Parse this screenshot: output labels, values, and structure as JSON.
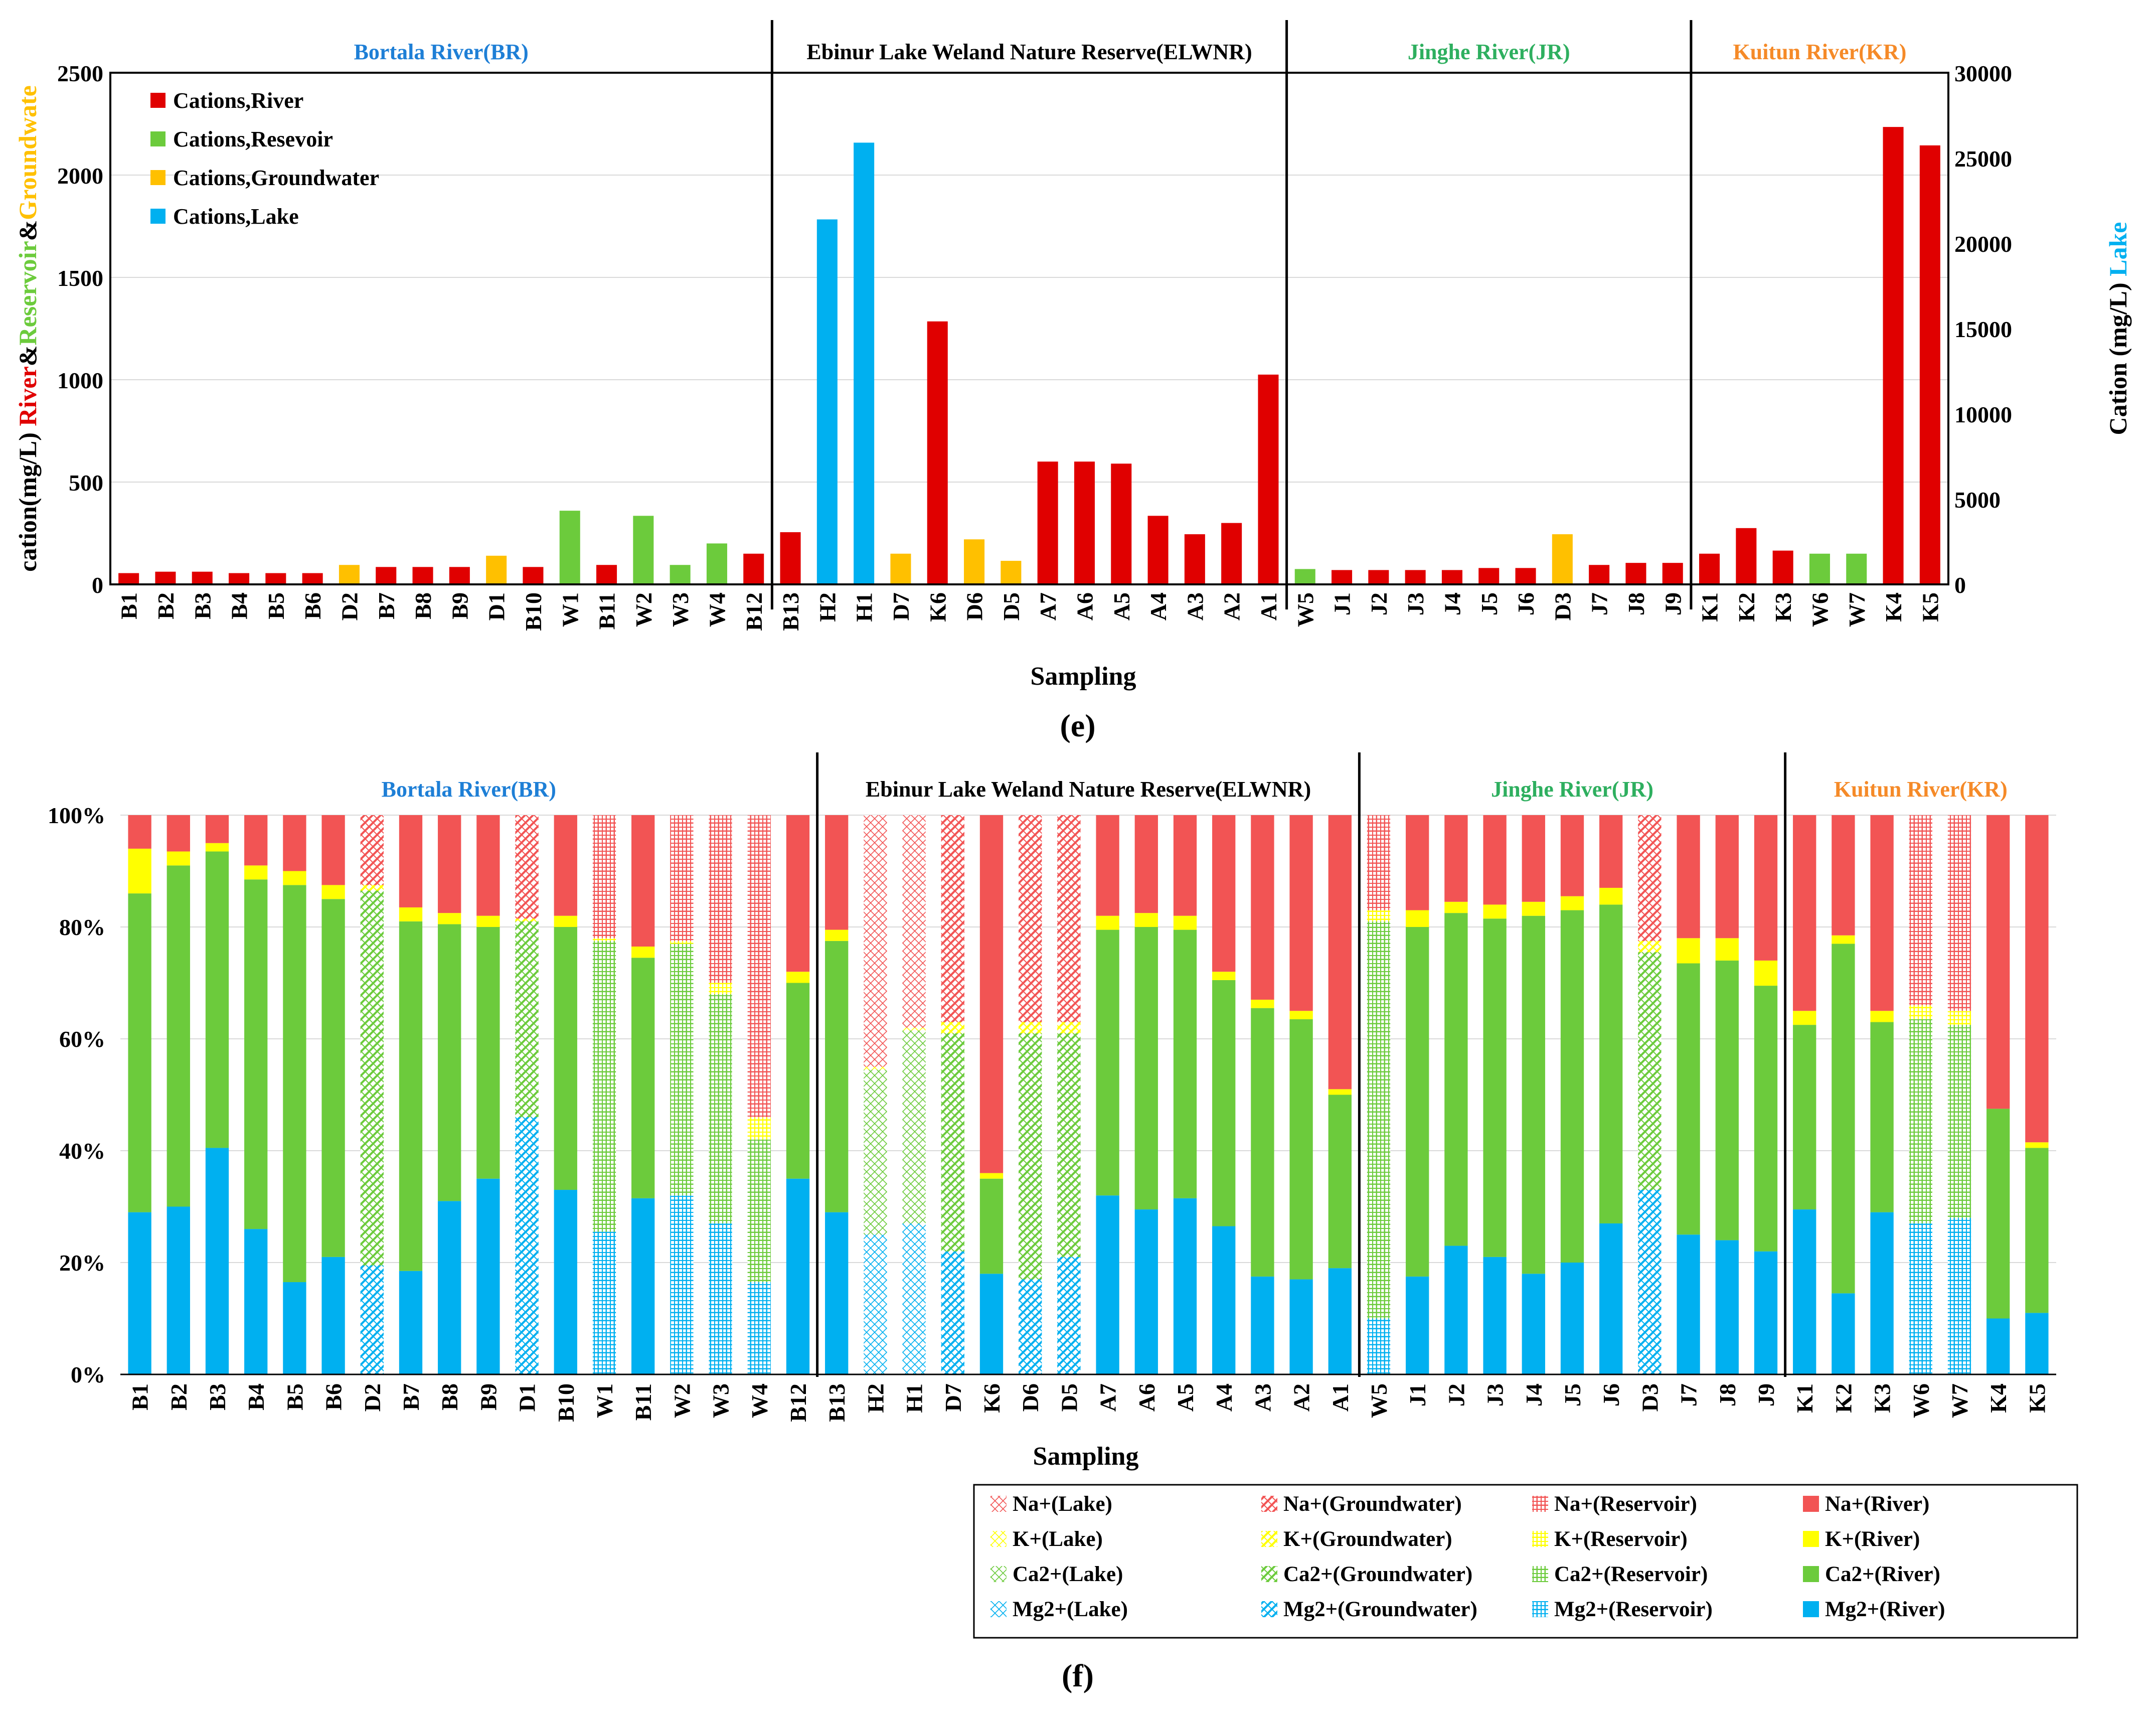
{
  "colors": {
    "river": "#E00000",
    "reservoir": "#6CCB3C",
    "groundwater": "#FFC000",
    "lake": "#00B0F0",
    "na": "#F25454",
    "k": "#FFFF00",
    "ca": "#6CCB3C",
    "mg": "#00B0F0",
    "br_title": "#1E7FD6",
    "jr_title": "#2EAF5F",
    "kr_title": "#F58A28",
    "grid": "#D9D9D9"
  },
  "chart_data": [
    {
      "id": "e",
      "type": "bar",
      "panel_label": "(e)",
      "xlabel": "Sampling",
      "ylabel_left": {
        "parts": [
          {
            "text": "cation(mg/L) ",
            "color": "#000000"
          },
          {
            "text": "River",
            "color": "#E00000"
          },
          {
            "text": "&",
            "color": "#000000"
          },
          {
            "text": "Reservoir",
            "color": "#6CCB3C"
          },
          {
            "text": "&",
            "color": "#000000"
          },
          {
            "text": "Groundwate",
            "color": "#FFC000"
          }
        ]
      },
      "ylabel_right": {
        "parts": [
          {
            "text": "Cation (mg/L) ",
            "color": "#000000"
          },
          {
            "text": "Lake",
            "color": "#00B0F0"
          }
        ]
      },
      "ylim_left": [
        0,
        2500
      ],
      "yticks_left": [
        0,
        500,
        1000,
        1500,
        2000,
        2500
      ],
      "ylim_right": [
        0,
        30000
      ],
      "yticks_right": [
        0,
        5000,
        10000,
        15000,
        20000,
        25000,
        30000
      ],
      "grid": true,
      "legend_position": "top-left",
      "legend": [
        {
          "label": "Cations,River",
          "type": "River"
        },
        {
          "label": "Cations,Resevoir",
          "type": "Reservoir"
        },
        {
          "label": "Cations,Groundwater",
          "type": "Groundwater"
        },
        {
          "label": "Cations,Lake",
          "type": "Lake"
        }
      ],
      "regions": [
        {
          "label": "Bortala River(BR)",
          "color": "#1E7FD6",
          "start": 0,
          "end": 18
        },
        {
          "label": "Ebinur Lake Weland Nature Reserve(ELWNR)",
          "color": "#000000",
          "start": 18,
          "end": 32
        },
        {
          "label": "Jinghe River(JR)",
          "color": "#2EAF5F",
          "start": 32,
          "end": 43
        },
        {
          "label": "Kuitun River(KR)",
          "color": "#F58A28",
          "start": 43,
          "end": 50
        }
      ],
      "samples": [
        {
          "name": "B1",
          "type": "River",
          "value": 55
        },
        {
          "name": "B2",
          "type": "River",
          "value": 62
        },
        {
          "name": "B3",
          "type": "River",
          "value": 62
        },
        {
          "name": "B4",
          "type": "River",
          "value": 55
        },
        {
          "name": "B5",
          "type": "River",
          "value": 55
        },
        {
          "name": "B6",
          "type": "River",
          "value": 55
        },
        {
          "name": "D2",
          "type": "Groundwater",
          "value": 95
        },
        {
          "name": "B7",
          "type": "River",
          "value": 85
        },
        {
          "name": "B8",
          "type": "River",
          "value": 85
        },
        {
          "name": "B9",
          "type": "River",
          "value": 85
        },
        {
          "name": "D1",
          "type": "Groundwater",
          "value": 140
        },
        {
          "name": "B10",
          "type": "River",
          "value": 85
        },
        {
          "name": "W1",
          "type": "Reservoir",
          "value": 360
        },
        {
          "name": "B11",
          "type": "River",
          "value": 95
        },
        {
          "name": "W2",
          "type": "Reservoir",
          "value": 335
        },
        {
          "name": "W3",
          "type": "Reservoir",
          "value": 95
        },
        {
          "name": "W4",
          "type": "Reservoir",
          "value": 200
        },
        {
          "name": "B12",
          "type": "River",
          "value": 150
        },
        {
          "name": "B13",
          "type": "River",
          "value": 255
        },
        {
          "name": "H2",
          "type": "Lake",
          "value": 21400
        },
        {
          "name": "H1",
          "type": "Lake",
          "value": 25900
        },
        {
          "name": "D7",
          "type": "Groundwater",
          "value": 150
        },
        {
          "name": "K6",
          "type": "River",
          "value": 1285
        },
        {
          "name": "D6",
          "type": "Groundwater",
          "value": 220
        },
        {
          "name": "D5",
          "type": "Groundwater",
          "value": 115
        },
        {
          "name": "A7",
          "type": "River",
          "value": 600
        },
        {
          "name": "A6",
          "type": "River",
          "value": 600
        },
        {
          "name": "A5",
          "type": "River",
          "value": 590
        },
        {
          "name": "A4",
          "type": "River",
          "value": 335
        },
        {
          "name": "A3",
          "type": "River",
          "value": 245
        },
        {
          "name": "A2",
          "type": "River",
          "value": 300
        },
        {
          "name": "A1",
          "type": "River",
          "value": 1025
        },
        {
          "name": "W5",
          "type": "Reservoir",
          "value": 75
        },
        {
          "name": "J1",
          "type": "River",
          "value": 70
        },
        {
          "name": "J2",
          "type": "River",
          "value": 70
        },
        {
          "name": "J3",
          "type": "River",
          "value": 70
        },
        {
          "name": "J4",
          "type": "River",
          "value": 70
        },
        {
          "name": "J5",
          "type": "River",
          "value": 80
        },
        {
          "name": "J6",
          "type": "River",
          "value": 80
        },
        {
          "name": "D3",
          "type": "Groundwater",
          "value": 245
        },
        {
          "name": "J7",
          "type": "River",
          "value": 95
        },
        {
          "name": "J8",
          "type": "River",
          "value": 105
        },
        {
          "name": "J9",
          "type": "River",
          "value": 105
        },
        {
          "name": "K1",
          "type": "River",
          "value": 150
        },
        {
          "name": "K2",
          "type": "River",
          "value": 275
        },
        {
          "name": "K3",
          "type": "River",
          "value": 165
        },
        {
          "name": "W6",
          "type": "Reservoir",
          "value": 150
        },
        {
          "name": "W7",
          "type": "Reservoir",
          "value": 150
        },
        {
          "name": "K4",
          "type": "River",
          "value": 2235
        },
        {
          "name": "K5",
          "type": "River",
          "value": 2145
        }
      ]
    },
    {
      "id": "f",
      "type": "bar",
      "stacked": "percent",
      "panel_label": "(f)",
      "xlabel": "Sampling",
      "ylim": [
        0,
        100
      ],
      "yticks": [
        "0%",
        "20%",
        "40%",
        "60%",
        "80%",
        "100%"
      ],
      "legend_position": "bottom-right",
      "legend": [
        {
          "label": "Na+(Lake)",
          "ion": "na",
          "type": "Lake"
        },
        {
          "label": "Na+(Groundwater)",
          "ion": "na",
          "type": "Groundwater"
        },
        {
          "label": "Na+(Reservoir)",
          "ion": "na",
          "type": "Reservoir"
        },
        {
          "label": "Na+(River)",
          "ion": "na",
          "type": "River"
        },
        {
          "label": "K+(Lake)",
          "ion": "k",
          "type": "Lake"
        },
        {
          "label": "K+(Groundwater)",
          "ion": "k",
          "type": "Groundwater"
        },
        {
          "label": "K+(Reservoir)",
          "ion": "k",
          "type": "Reservoir"
        },
        {
          "label": "K+(River)",
          "ion": "k",
          "type": "River"
        },
        {
          "label": "Ca2+(Lake)",
          "ion": "ca",
          "type": "Lake"
        },
        {
          "label": "Ca2+(Groundwater)",
          "ion": "ca",
          "type": "Groundwater"
        },
        {
          "label": "Ca2+(Reservoir)",
          "ion": "ca",
          "type": "Reservoir"
        },
        {
          "label": "Ca2+(River)",
          "ion": "ca",
          "type": "River"
        },
        {
          "label": "Mg2+(Lake)",
          "ion": "mg",
          "type": "Lake"
        },
        {
          "label": "Mg2+(Groundwater)",
          "ion": "mg",
          "type": "Groundwater"
        },
        {
          "label": "Mg2+(Reservoir)",
          "ion": "mg",
          "type": "Reservoir"
        },
        {
          "label": "Mg2+(River)",
          "ion": "mg",
          "type": "River"
        }
      ],
      "regions": [
        {
          "label": "Bortala River(BR)",
          "color": "#1E7FD6",
          "start": 0,
          "end": 18
        },
        {
          "label": "Ebinur Lake Weland Nature Reserve(ELWNR)",
          "color": "#000000",
          "start": 18,
          "end": 32
        },
        {
          "label": "Jinghe River(JR)",
          "color": "#2EAF5F",
          "start": 32,
          "end": 43
        },
        {
          "label": "Kuitun River(KR)",
          "color": "#F58A28",
          "start": 43,
          "end": 50
        }
      ],
      "samples": [
        {
          "name": "B1",
          "type": "River",
          "mg": 29,
          "ca": 57,
          "k": 8,
          "na": 6
        },
        {
          "name": "B2",
          "type": "River",
          "mg": 30,
          "ca": 61,
          "k": 2.5,
          "na": 6.5
        },
        {
          "name": "B3",
          "type": "River",
          "mg": 40.5,
          "ca": 53,
          "k": 1.5,
          "na": 5
        },
        {
          "name": "B4",
          "type": "River",
          "mg": 26,
          "ca": 62.5,
          "k": 2.5,
          "na": 9
        },
        {
          "name": "B5",
          "type": "River",
          "mg": 16.5,
          "ca": 71,
          "k": 2.5,
          "na": 10
        },
        {
          "name": "B6",
          "type": "River",
          "mg": 21,
          "ca": 64,
          "k": 2.5,
          "na": 12.5
        },
        {
          "name": "D2",
          "type": "Groundwater",
          "mg": 19.5,
          "ca": 67,
          "k": 1,
          "na": 12.5
        },
        {
          "name": "B7",
          "type": "River",
          "mg": 18.5,
          "ca": 62.5,
          "k": 2.5,
          "na": 16.5
        },
        {
          "name": "B8",
          "type": "River",
          "mg": 31,
          "ca": 49.5,
          "k": 2,
          "na": 17.5
        },
        {
          "name": "B9",
          "type": "River",
          "mg": 35,
          "ca": 45,
          "k": 2,
          "na": 18
        },
        {
          "name": "D1",
          "type": "Groundwater",
          "mg": 46,
          "ca": 35,
          "k": 0.5,
          "na": 18.5
        },
        {
          "name": "B10",
          "type": "River",
          "mg": 33,
          "ca": 47,
          "k": 2,
          "na": 18
        },
        {
          "name": "W1",
          "type": "Reservoir",
          "mg": 25.5,
          "ca": 52,
          "k": 0.5,
          "na": 22
        },
        {
          "name": "B11",
          "type": "River",
          "mg": 31.5,
          "ca": 43,
          "k": 2,
          "na": 23.5
        },
        {
          "name": "W2",
          "type": "Reservoir",
          "mg": 32,
          "ca": 45,
          "k": 0.5,
          "na": 22.5
        },
        {
          "name": "W3",
          "type": "Reservoir",
          "mg": 27,
          "ca": 41,
          "k": 2,
          "na": 30
        },
        {
          "name": "W4",
          "type": "Reservoir",
          "mg": 16.5,
          "ca": 25.5,
          "k": 4,
          "na": 54
        },
        {
          "name": "B12",
          "type": "River",
          "mg": 35,
          "ca": 35,
          "k": 2,
          "na": 28
        },
        {
          "name": "B13",
          "type": "River",
          "mg": 29,
          "ca": 48.5,
          "k": 2,
          "na": 20.5
        },
        {
          "name": "H2",
          "type": "Lake",
          "mg": 25,
          "ca": 29.5,
          "k": 0.5,
          "na": 45
        },
        {
          "name": "H1",
          "type": "Lake",
          "mg": 27,
          "ca": 34.5,
          "k": 0.5,
          "na": 38
        },
        {
          "name": "D7",
          "type": "Groundwater",
          "mg": 22,
          "ca": 39,
          "k": 2,
          "na": 37
        },
        {
          "name": "K6",
          "type": "River",
          "mg": 18,
          "ca": 17,
          "k": 1,
          "na": 64
        },
        {
          "name": "D6",
          "type": "Groundwater",
          "mg": 17,
          "ca": 44,
          "k": 2,
          "na": 37
        },
        {
          "name": "D5",
          "type": "Groundwater",
          "mg": 21,
          "ca": 40,
          "k": 2,
          "na": 37
        },
        {
          "name": "A7",
          "type": "River",
          "mg": 32,
          "ca": 47.5,
          "k": 2.5,
          "na": 18
        },
        {
          "name": "A6",
          "type": "River",
          "mg": 29.5,
          "ca": 50.5,
          "k": 2.5,
          "na": 17.5
        },
        {
          "name": "A5",
          "type": "River",
          "mg": 31.5,
          "ca": 48,
          "k": 2.5,
          "na": 18
        },
        {
          "name": "A4",
          "type": "River",
          "mg": 26.5,
          "ca": 44,
          "k": 1.5,
          "na": 28
        },
        {
          "name": "A3",
          "type": "River",
          "mg": 17.5,
          "ca": 48,
          "k": 1.5,
          "na": 33
        },
        {
          "name": "A2",
          "type": "River",
          "mg": 17,
          "ca": 46.5,
          "k": 1.5,
          "na": 35
        },
        {
          "name": "A1",
          "type": "River",
          "mg": 19,
          "ca": 31,
          "k": 1,
          "na": 49
        },
        {
          "name": "W5",
          "type": "Reservoir",
          "mg": 10,
          "ca": 71,
          "k": 2,
          "na": 17
        },
        {
          "name": "J1",
          "type": "River",
          "mg": 17.5,
          "ca": 62.5,
          "k": 3,
          "na": 17
        },
        {
          "name": "J2",
          "type": "River",
          "mg": 23,
          "ca": 59.5,
          "k": 2,
          "na": 15.5
        },
        {
          "name": "J3",
          "type": "River",
          "mg": 21,
          "ca": 60.5,
          "k": 2.5,
          "na": 16
        },
        {
          "name": "J4",
          "type": "River",
          "mg": 18,
          "ca": 64,
          "k": 2.5,
          "na": 15.5
        },
        {
          "name": "J5",
          "type": "River",
          "mg": 20,
          "ca": 63,
          "k": 2.5,
          "na": 14.5
        },
        {
          "name": "J6",
          "type": "River",
          "mg": 27,
          "ca": 57,
          "k": 3,
          "na": 13
        },
        {
          "name": "D3",
          "type": "Groundwater",
          "mg": 33,
          "ca": 42.5,
          "k": 2,
          "na": 22.5
        },
        {
          "name": "J7",
          "type": "River",
          "mg": 25,
          "ca": 48.5,
          "k": 4.5,
          "na": 22
        },
        {
          "name": "J8",
          "type": "River",
          "mg": 24,
          "ca": 50,
          "k": 4,
          "na": 22
        },
        {
          "name": "J9",
          "type": "River",
          "mg": 22,
          "ca": 47.5,
          "k": 4.5,
          "na": 26
        },
        {
          "name": "K1",
          "type": "River",
          "mg": 29.5,
          "ca": 33,
          "k": 2.5,
          "na": 35
        },
        {
          "name": "K2",
          "type": "River",
          "mg": 14.5,
          "ca": 62.5,
          "k": 1.5,
          "na": 21.5
        },
        {
          "name": "K3",
          "type": "River",
          "mg": 29,
          "ca": 34,
          "k": 2,
          "na": 35
        },
        {
          "name": "W6",
          "type": "Reservoir",
          "mg": 27,
          "ca": 36.5,
          "k": 2.5,
          "na": 34
        },
        {
          "name": "W7",
          "type": "Reservoir",
          "mg": 28,
          "ca": 34.5,
          "k": 2.5,
          "na": 35
        },
        {
          "name": "K4",
          "type": "River",
          "mg": 10,
          "ca": 37.5,
          "k": 0,
          "na": 52.5
        },
        {
          "name": "K5",
          "type": "River",
          "mg": 11,
          "ca": 29.5,
          "k": 1,
          "na": 58.5
        }
      ]
    }
  ]
}
